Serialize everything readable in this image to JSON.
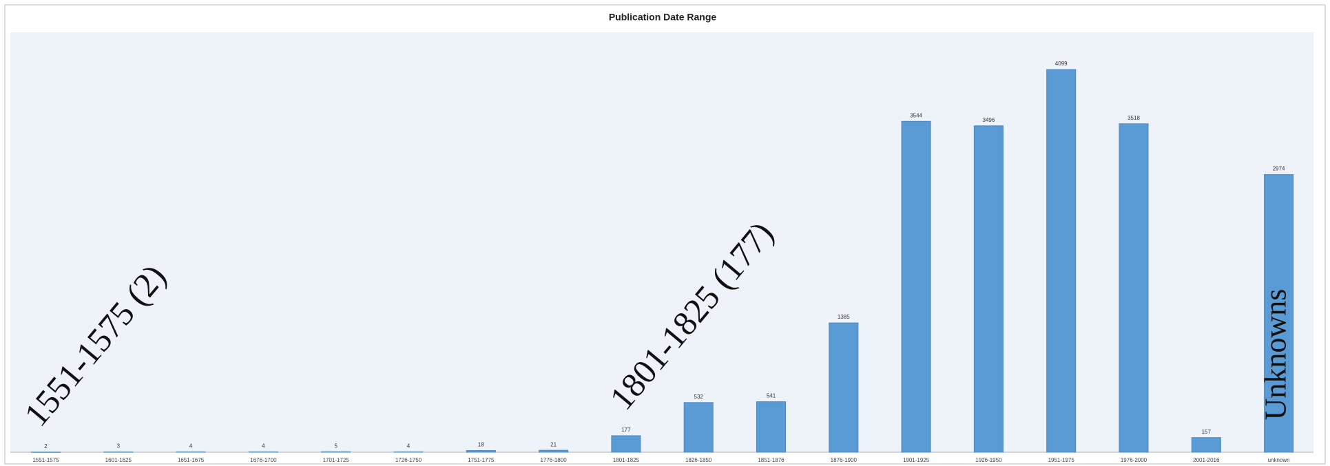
{
  "chart_data": {
    "type": "bar",
    "title": "Publication Date Range",
    "categories": [
      "1551-1575",
      "1601-1625",
      "1651-1675",
      "1676-1700",
      "1701-1725",
      "1726-1750",
      "1751-1775",
      "1776-1800",
      "1801-1825",
      "1826-1850",
      "1851-1876",
      "1876-1900",
      "1901-1925",
      "1926-1950",
      "1951-1975",
      "1976-2000",
      "2001-2016",
      "unknown"
    ],
    "values": [
      2,
      3,
      4,
      4,
      5,
      4,
      18,
      21,
      177,
      532,
      541,
      1385,
      3544,
      3496,
      4099,
      3518,
      157,
      2974
    ],
    "color": "#5b9bd5",
    "annotations": [
      "1551-1575 (2)",
      "1801-1825 (177)",
      "Unknowns"
    ]
  }
}
